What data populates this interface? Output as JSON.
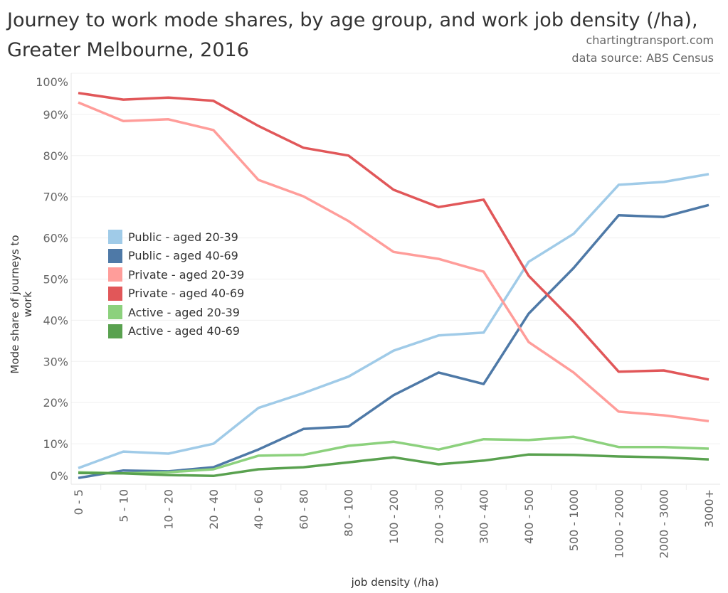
{
  "title_line1": "Journey to work mode shares, by age group, and work job density (/ha),",
  "title_line2": "Greater Melbourne, 2016",
  "credit": "chartingtransport.com",
  "source": "data source: ABS Census",
  "chart_data": {
    "type": "line",
    "title": "Journey to work mode shares, by age group, and work job density (/ha), Greater Melbourne, 2016",
    "xlabel": "job density (/ha)",
    "ylabel": "Mode share of journeys to work",
    "ylim": [
      0,
      100
    ],
    "yticks": [
      "0%",
      "10%",
      "20%",
      "30%",
      "40%",
      "50%",
      "60%",
      "70%",
      "80%",
      "90%",
      "100%"
    ],
    "grid": true,
    "legend_position": "left-middle",
    "categories": [
      "0 - 5",
      "5 - 10",
      "10 - 20",
      "20 - 40",
      "40 - 60",
      "60 - 80",
      "80 - 100",
      "100 - 200",
      "200 - 300",
      "300 - 400",
      "400 - 500",
      "500 - 1000",
      "1000 - 2000",
      "2000 - 3000",
      "3000+"
    ],
    "series": [
      {
        "name": "Public - aged 20-39",
        "color": "#a0cbe8",
        "values": [
          4.1,
          8.1,
          7.6,
          10.0,
          18.7,
          22.3,
          26.3,
          32.6,
          36.3,
          37.0,
          54.2,
          61.0,
          72.9,
          73.6,
          75.5
        ]
      },
      {
        "name": "Public - aged 40-69",
        "color": "#4e79a7",
        "values": [
          1.7,
          3.5,
          3.3,
          4.3,
          8.6,
          13.6,
          14.2,
          21.8,
          27.3,
          24.5,
          41.6,
          52.7,
          65.5,
          65.1,
          68.0
        ]
      },
      {
        "name": "Private - aged 20-39",
        "color": "#ff9d9a",
        "values": [
          92.9,
          88.4,
          88.8,
          86.2,
          74.1,
          70.1,
          64.1,
          56.6,
          54.9,
          51.8,
          34.7,
          27.3,
          17.8,
          16.9,
          15.5
        ]
      },
      {
        "name": "Private - aged 40-69",
        "color": "#e15759",
        "values": [
          95.2,
          93.6,
          94.1,
          93.3,
          87.2,
          81.9,
          80.0,
          71.7,
          67.5,
          69.3,
          50.8,
          39.7,
          27.5,
          27.8,
          25.6
        ]
      },
      {
        "name": "Active - aged 20-39",
        "color": "#8cd17d",
        "values": [
          3.1,
          2.8,
          3.1,
          3.8,
          7.1,
          7.3,
          9.5,
          10.5,
          8.6,
          11.1,
          10.9,
          11.7,
          9.2,
          9.2,
          8.8
        ]
      },
      {
        "name": "Active - aged 40-69",
        "color": "#59a14f",
        "values": [
          2.9,
          2.8,
          2.4,
          2.2,
          3.8,
          4.3,
          5.5,
          6.7,
          5.0,
          5.9,
          7.4,
          7.3,
          6.9,
          6.7,
          6.2
        ]
      }
    ]
  }
}
